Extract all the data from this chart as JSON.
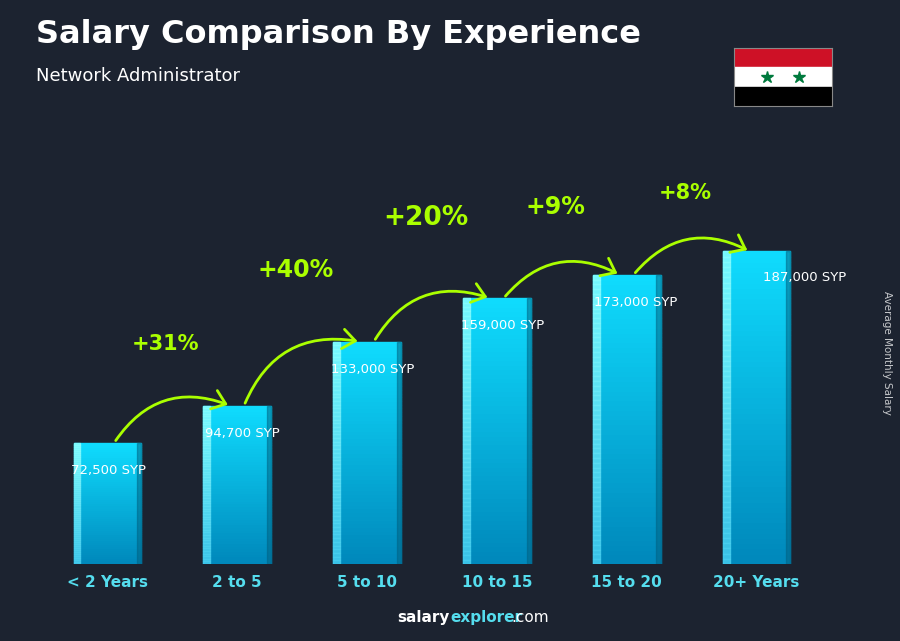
{
  "title": "Salary Comparison By Experience",
  "subtitle": "Network Administrator",
  "categories": [
    "< 2 Years",
    "2 to 5",
    "5 to 10",
    "10 to 15",
    "15 to 20",
    "20+ Years"
  ],
  "values": [
    72500,
    94700,
    133000,
    159000,
    173000,
    187000
  ],
  "value_labels": [
    "72,500 SYP",
    "94,700 SYP",
    "133,000 SYP",
    "159,000 SYP",
    "173,000 SYP",
    "187,000 SYP"
  ],
  "pct_labels": [
    "+31%",
    "+40%",
    "+20%",
    "+9%",
    "+8%"
  ],
  "pct_fontsizes": [
    15,
    17,
    19,
    17,
    15
  ],
  "bg_color": "#1c2330",
  "title_color": "#ffffff",
  "subtitle_color": "#ffffff",
  "value_label_color": "#ffffff",
  "pct_color": "#aaff00",
  "tick_color": "#55ddee",
  "footer_salary_color": "#ffffff",
  "footer_explorer_color": "#55ddee",
  "watermark": "Average Monthly Salary",
  "ylim_max": 230000,
  "bar_width": 0.52
}
